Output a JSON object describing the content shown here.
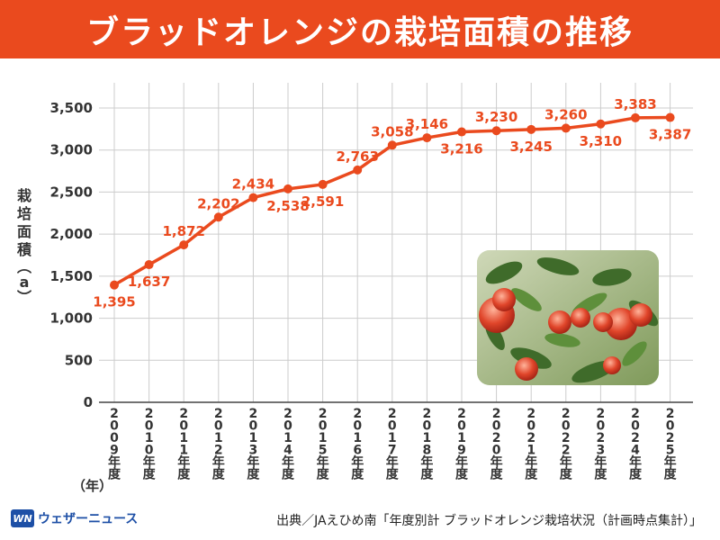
{
  "header": {
    "title": "ブラッドオレンジの栽培面積の推移"
  },
  "colors": {
    "accent": "#ea4a1e",
    "line": "#ea4a1e",
    "grid": "#cccccc",
    "brand": "#1d4fa6"
  },
  "chart_data": {
    "type": "line",
    "title": "ブラッドオレンジの栽培面積の推移",
    "ylabel": "栽培面積（a）",
    "ylabel_text": "栽培面積",
    "ylabel_unit": "a",
    "xlabel": "（年）",
    "ylim": [
      0,
      3500
    ],
    "yticks": [
      "0",
      "500",
      "1,000",
      "1,500",
      "2,000",
      "2,500",
      "3,000",
      "3,500"
    ],
    "ytick_values": [
      0,
      500,
      1000,
      1500,
      2000,
      2500,
      3000,
      3500
    ],
    "grid": true,
    "categories": [
      "2009年度",
      "2010年度",
      "2011年度",
      "2012年度",
      "2013年度",
      "2014年度",
      "2015年度",
      "2016年度",
      "2017年度",
      "2018年度",
      "2019年度",
      "2020年度",
      "2021年度",
      "2022年度",
      "2023年度",
      "2024年度",
      "2025年度"
    ],
    "year_labels": [
      "2009",
      "2010",
      "2011",
      "2012",
      "2013",
      "2014",
      "2015",
      "2016",
      "2017",
      "2018",
      "2019",
      "2020",
      "2021",
      "2022",
      "2023",
      "2024",
      "2025"
    ],
    "suffix": "年度",
    "values": [
      1395,
      1637,
      1872,
      2202,
      2434,
      2538,
      2591,
      2763,
      3058,
      3146,
      3216,
      3230,
      3245,
      3260,
      3310,
      3383,
      3387
    ],
    "labels": [
      "1,395",
      "1,637",
      "1,872",
      "2,202",
      "2,434",
      "2,538",
      "2,591",
      "2,763",
      "3,058",
      "3,146",
      "3,216",
      "3,230",
      "3,245",
      "3,260",
      "3,310",
      "3,383",
      "3,387"
    ],
    "label_pos": [
      "below",
      "below",
      "above",
      "above",
      "above",
      "below",
      "below",
      "above",
      "above",
      "above",
      "below",
      "above",
      "below",
      "above",
      "below",
      "above",
      "below"
    ]
  },
  "footer": {
    "logo_mark": "WN",
    "logo_text": "ウェザーニュース",
    "source": "出典／JAえひめ南「年度別計 ブラッドオレンジ栽培状況（計画時点集計）」"
  }
}
